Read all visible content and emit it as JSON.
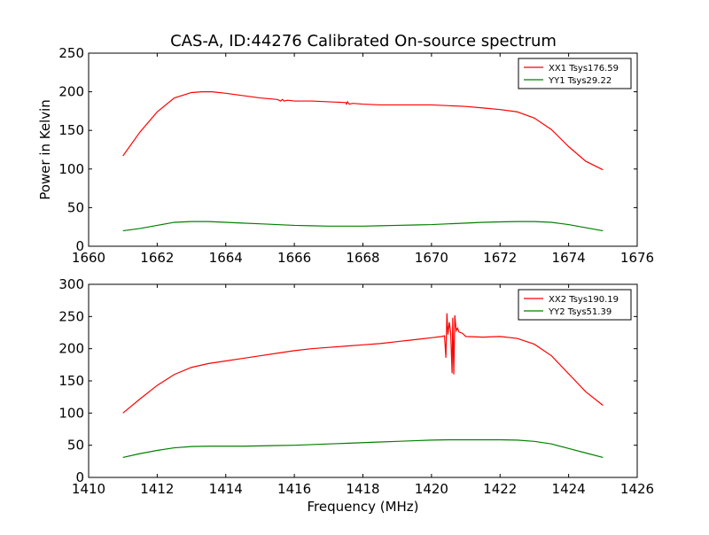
{
  "title": "CAS-A, ID:44276 Calibrated On-source spectrum",
  "chart_data": [
    {
      "type": "line",
      "title": "CAS-A, ID:44276 Calibrated On-source spectrum",
      "xlabel": "",
      "ylabel": "Power in Kelvin",
      "xlim": [
        1660,
        1676
      ],
      "ylim": [
        0,
        250
      ],
      "xticks": [
        1660,
        1662,
        1664,
        1666,
        1668,
        1670,
        1672,
        1674,
        1676
      ],
      "yticks": [
        0,
        50,
        100,
        150,
        200,
        250
      ],
      "grid": false,
      "legend_position": "upper right",
      "series": [
        {
          "name": "XX1 Tsys176.59",
          "color": "#ff0000",
          "x": [
            1661.0,
            1661.5,
            1662.0,
            1662.5,
            1663.0,
            1663.3,
            1663.6,
            1664.0,
            1664.5,
            1665.0,
            1665.5,
            1665.6,
            1665.65,
            1665.7,
            1665.8,
            1666.0,
            1666.5,
            1667.0,
            1667.5,
            1667.52,
            1667.55,
            1667.6,
            1667.7,
            1668.0,
            1668.5,
            1669.0,
            1669.5,
            1670.0,
            1670.5,
            1671.0,
            1671.5,
            1672.0,
            1672.5,
            1673.0,
            1673.5,
            1674.0,
            1674.5,
            1675.0
          ],
          "values": [
            117,
            148,
            174,
            192,
            199,
            200,
            200,
            198,
            195,
            192,
            190,
            188,
            190,
            188,
            189,
            188,
            188,
            187,
            186,
            184,
            187,
            184,
            185,
            184,
            183,
            183,
            183,
            183,
            182,
            181,
            179,
            177,
            174,
            166,
            151,
            129,
            110,
            99
          ]
        },
        {
          "name": "YY1 Tsys29.22",
          "color": "#008000",
          "x": [
            1661.0,
            1661.5,
            1662.0,
            1662.5,
            1663.0,
            1663.5,
            1664.0,
            1664.5,
            1665.0,
            1665.5,
            1666.0,
            1666.5,
            1667.0,
            1667.5,
            1668.0,
            1668.5,
            1669.0,
            1669.5,
            1670.0,
            1670.5,
            1671.0,
            1671.5,
            1672.0,
            1672.5,
            1673.0,
            1673.5,
            1674.0,
            1674.5,
            1675.0
          ],
          "values": [
            20,
            23,
            27,
            31,
            32,
            32,
            31,
            30,
            29,
            28,
            27,
            26.5,
            26,
            26,
            26,
            26.5,
            27,
            27.5,
            28,
            29,
            30,
            31,
            31.5,
            32,
            32,
            31,
            28,
            24,
            20
          ]
        }
      ]
    },
    {
      "type": "line",
      "title": "",
      "xlabel": "Frequency (MHz)",
      "ylabel": "",
      "xlim": [
        1410,
        1426
      ],
      "ylim": [
        0,
        300
      ],
      "xticks": [
        1410,
        1412,
        1414,
        1416,
        1418,
        1420,
        1422,
        1424,
        1426
      ],
      "yticks": [
        0,
        50,
        100,
        150,
        200,
        250,
        300
      ],
      "grid": false,
      "legend_position": "upper right",
      "series": [
        {
          "name": "XX2 Tsys190.19",
          "color": "#ff0000",
          "x": [
            1411.0,
            1411.5,
            1412.0,
            1412.5,
            1413.0,
            1413.5,
            1414.0,
            1414.5,
            1415.0,
            1415.5,
            1416.0,
            1416.5,
            1417.0,
            1417.5,
            1418.0,
            1418.5,
            1419.0,
            1419.5,
            1420.0,
            1420.3,
            1420.38,
            1420.42,
            1420.45,
            1420.48,
            1420.52,
            1420.56,
            1420.6,
            1420.62,
            1420.65,
            1420.68,
            1420.72,
            1420.76,
            1420.8,
            1420.9,
            1421.0,
            1421.5,
            1422.0,
            1422.5,
            1423.0,
            1423.5,
            1424.0,
            1424.5,
            1425.0
          ],
          "values": [
            100,
            122,
            143,
            160,
            171,
            177,
            181,
            185,
            189,
            193,
            197,
            200,
            202,
            204,
            206,
            208,
            211,
            214,
            217,
            219,
            220,
            186,
            255,
            222,
            241,
            225,
            162,
            248,
            160,
            252,
            228,
            232,
            226,
            224,
            219,
            218,
            219,
            216,
            207,
            189,
            161,
            133,
            112
          ]
        },
        {
          "name": "YY2 Tsys51.39",
          "color": "#008000",
          "x": [
            1411.0,
            1411.5,
            1412.0,
            1412.5,
            1413.0,
            1413.5,
            1414.0,
            1414.5,
            1415.0,
            1415.5,
            1416.0,
            1416.5,
            1417.0,
            1417.5,
            1418.0,
            1418.5,
            1419.0,
            1419.5,
            1420.0,
            1420.5,
            1421.0,
            1421.5,
            1422.0,
            1422.5,
            1423.0,
            1423.5,
            1424.0,
            1424.5,
            1425.0
          ],
          "values": [
            31,
            37,
            42,
            46,
            48,
            48.5,
            48.5,
            48.5,
            49,
            49.5,
            50,
            51,
            52,
            53,
            54,
            55,
            56,
            57,
            58,
            58.5,
            58.5,
            58.5,
            58.5,
            58,
            56,
            52,
            45,
            38,
            31
          ]
        }
      ]
    }
  ]
}
